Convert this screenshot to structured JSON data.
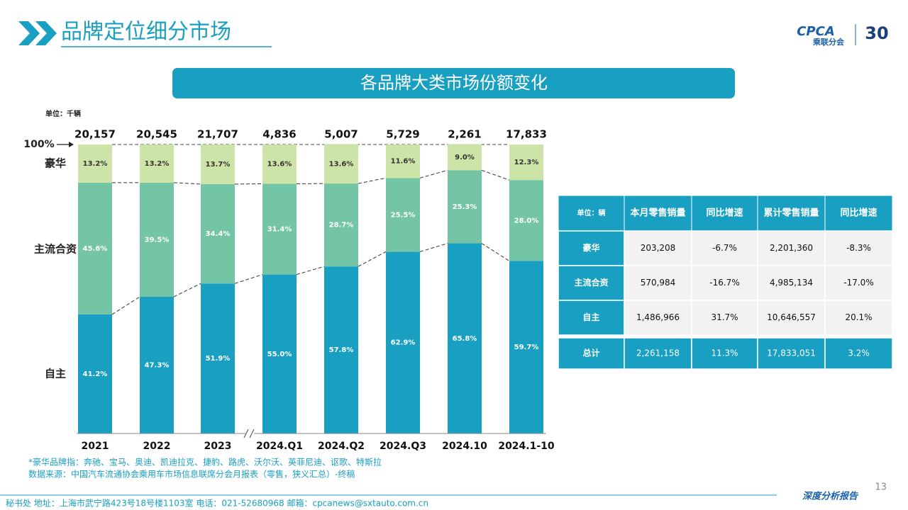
{
  "header": {
    "title": "品牌定位细分市场",
    "logo": "CPCA",
    "logo_sub": "乘联分会",
    "anniversary": "30"
  },
  "chart_data": {
    "type": "bar",
    "stacked": true,
    "title": "各品牌大类市场份额变化",
    "unit": "单位：千辆",
    "categories": [
      "2021",
      "2022",
      "2023",
      "2024.Q1",
      "2024.Q2",
      "2024.Q3",
      "2024.10",
      "2024.1-10"
    ],
    "totals": {
      "values": [
        20157,
        20545,
        21707,
        4836,
        5007,
        5729,
        2261,
        17833
      ],
      "value_labels": [
        "20,157",
        "20,545",
        "21,707",
        "4,836",
        "5,007",
        "5,729",
        "2,261",
        "17,833"
      ]
    },
    "series": [
      {
        "name": "自主",
        "color": "#189fc1",
        "label_color": "#ffffff",
        "values": [
          41.2,
          47.3,
          51.9,
          55.0,
          57.8,
          62.9,
          65.8,
          59.7
        ],
        "value_labels": [
          "41.2%",
          "47.3%",
          "51.9%",
          "55.0%",
          "57.8%",
          "62.9%",
          "65.8%",
          "59.7%"
        ]
      },
      {
        "name": "主流合资",
        "color": "#74c5a6",
        "label_color": "#ffffff",
        "values": [
          45.6,
          39.5,
          34.4,
          31.4,
          28.7,
          25.5,
          25.3,
          28.0
        ],
        "value_labels": [
          "45.6%",
          "39.5%",
          "34.4%",
          "31.4%",
          "28.7%",
          "25.5%",
          "25.3%",
          "28.0%"
        ]
      },
      {
        "name": "豪华",
        "color": "#cde4a9",
        "label_color": "#333333",
        "values": [
          13.2,
          13.2,
          13.7,
          13.6,
          13.6,
          11.6,
          9.0,
          12.3
        ],
        "value_labels": [
          "13.2%",
          "13.2%",
          "13.7%",
          "13.6%",
          "13.6%",
          "11.6%",
          "9.0%",
          "12.3%"
        ]
      }
    ],
    "ylim": [
      0,
      100
    ],
    "yticks": [
      {
        "value": 100,
        "label": "100%"
      }
    ]
  },
  "table": {
    "header": [
      "单位：辆",
      "本月零售销量",
      "同比增速",
      "累计零售销量",
      "同比增速"
    ],
    "rows": [
      [
        "豪华",
        "203,208",
        "-6.7%",
        "2,201,360",
        "-8.3%"
      ],
      [
        "主流合资",
        "570,984",
        "-16.7%",
        "4,985,134",
        "-17.0%"
      ],
      [
        "自主",
        "1,486,966",
        "31.7%",
        "10,646,557",
        "20.1%"
      ],
      [
        "总计",
        "2,261,158",
        "11.3%",
        "17,833,051",
        "3.2%"
      ]
    ]
  },
  "notes": [
    "*豪华品牌指：奔驰、宝马、奥迪、凯迪拉克、捷豹、路虎、沃尔沃、英菲尼迪、讴歌、特斯拉",
    "数据来源：中国汽车流通协会乘用车市场信息联席分会月报表（零售，狭义汇总）-终稿"
  ],
  "footer": {
    "address": "秘书处  地址：上海市武宁路423号18号楼1103室  电话：021-52680968  邮箱：cpcanews@sxtauto.com.cn",
    "report": "深度分析报告",
    "page": "13"
  }
}
